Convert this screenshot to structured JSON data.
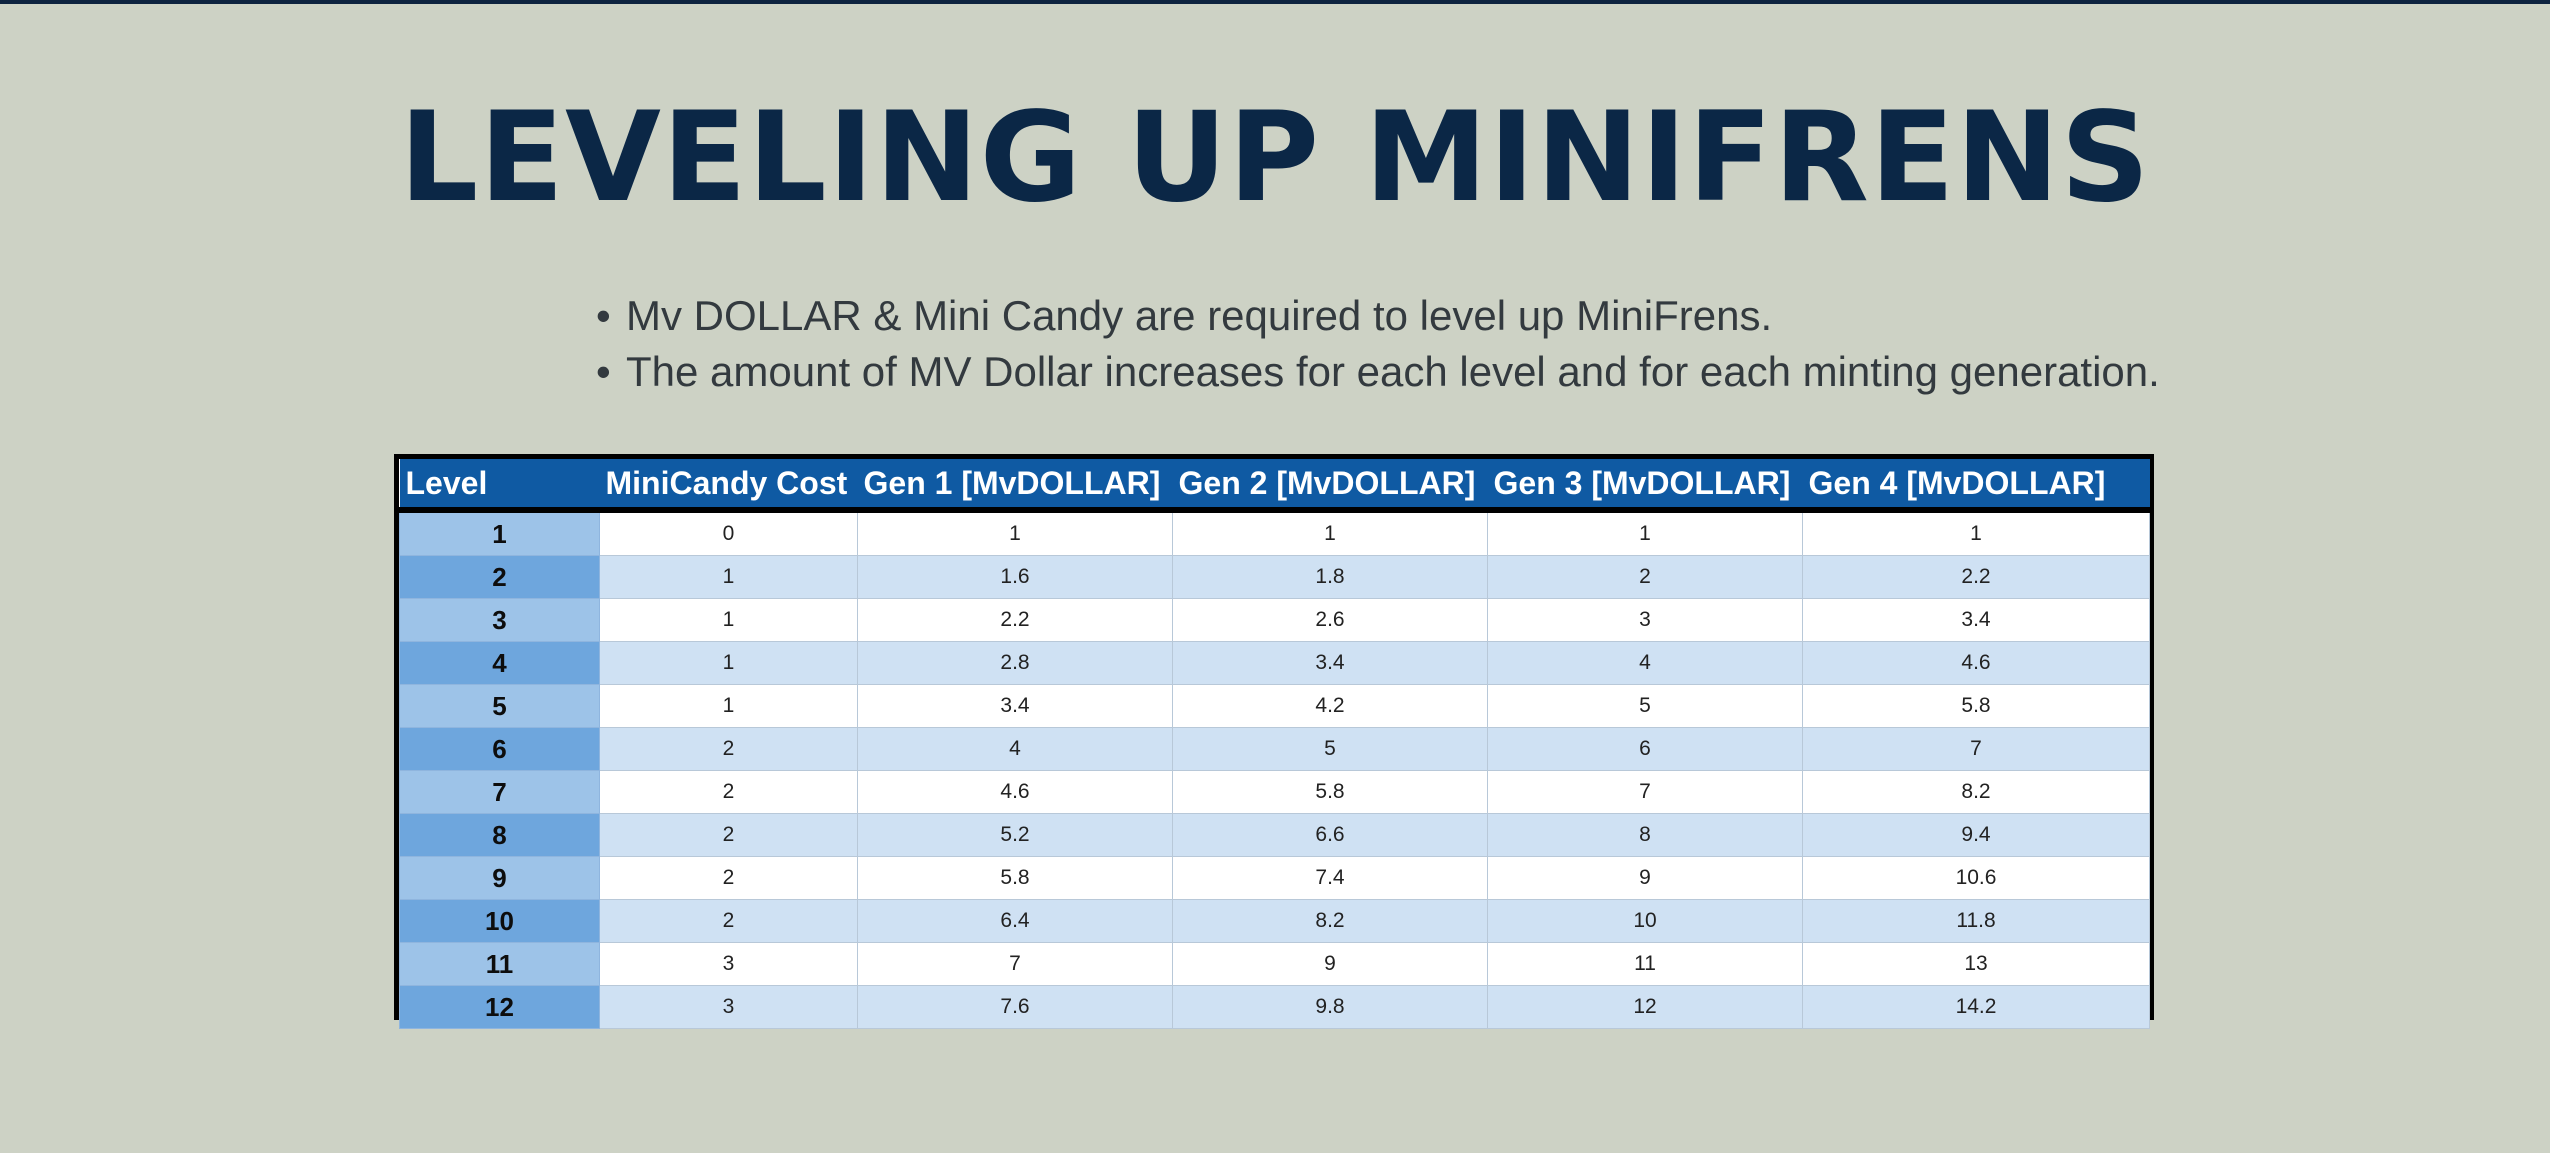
{
  "title": "LEVELING UP MINIFRENS",
  "bullets": [
    "Mv DOLLAR & Mini Candy are required to level up MiniFrens.",
    "The amount of MV Dollar increases for each level and for each minting generation."
  ],
  "bullet_glyph": "•",
  "table": {
    "headers": [
      "Level",
      "MiniCandy Cost",
      "Gen 1 [MvDOLLAR]",
      "Gen 2 [MvDOLLAR]",
      "Gen 3 [MvDOLLAR]",
      "Gen 4 [MvDOLLAR]"
    ],
    "rows": [
      [
        "1",
        "0",
        "1",
        "1",
        "1",
        "1"
      ],
      [
        "2",
        "1",
        "1.6",
        "1.8",
        "2",
        "2.2"
      ],
      [
        "3",
        "1",
        "2.2",
        "2.6",
        "3",
        "3.4"
      ],
      [
        "4",
        "1",
        "2.8",
        "3.4",
        "4",
        "4.6"
      ],
      [
        "5",
        "1",
        "3.4",
        "4.2",
        "5",
        "5.8"
      ],
      [
        "6",
        "2",
        "4",
        "5",
        "6",
        "7"
      ],
      [
        "7",
        "2",
        "4.6",
        "5.8",
        "7",
        "8.2"
      ],
      [
        "8",
        "2",
        "5.2",
        "6.6",
        "8",
        "9.4"
      ],
      [
        "9",
        "2",
        "5.8",
        "7.4",
        "9",
        "10.6"
      ],
      [
        "10",
        "2",
        "6.4",
        "8.2",
        "10",
        "11.8"
      ],
      [
        "11",
        "3",
        "7",
        "9",
        "11",
        "13"
      ],
      [
        "12",
        "3",
        "7.6",
        "9.8",
        "12",
        "14.2"
      ]
    ]
  },
  "colors": {
    "background": "#cdd2c5",
    "title": "#0b2746",
    "header": "#0f5aa3",
    "row_alt": "#cfe1f3",
    "level_light": "#9dc3e8",
    "level_dark": "#6ea6dd"
  }
}
